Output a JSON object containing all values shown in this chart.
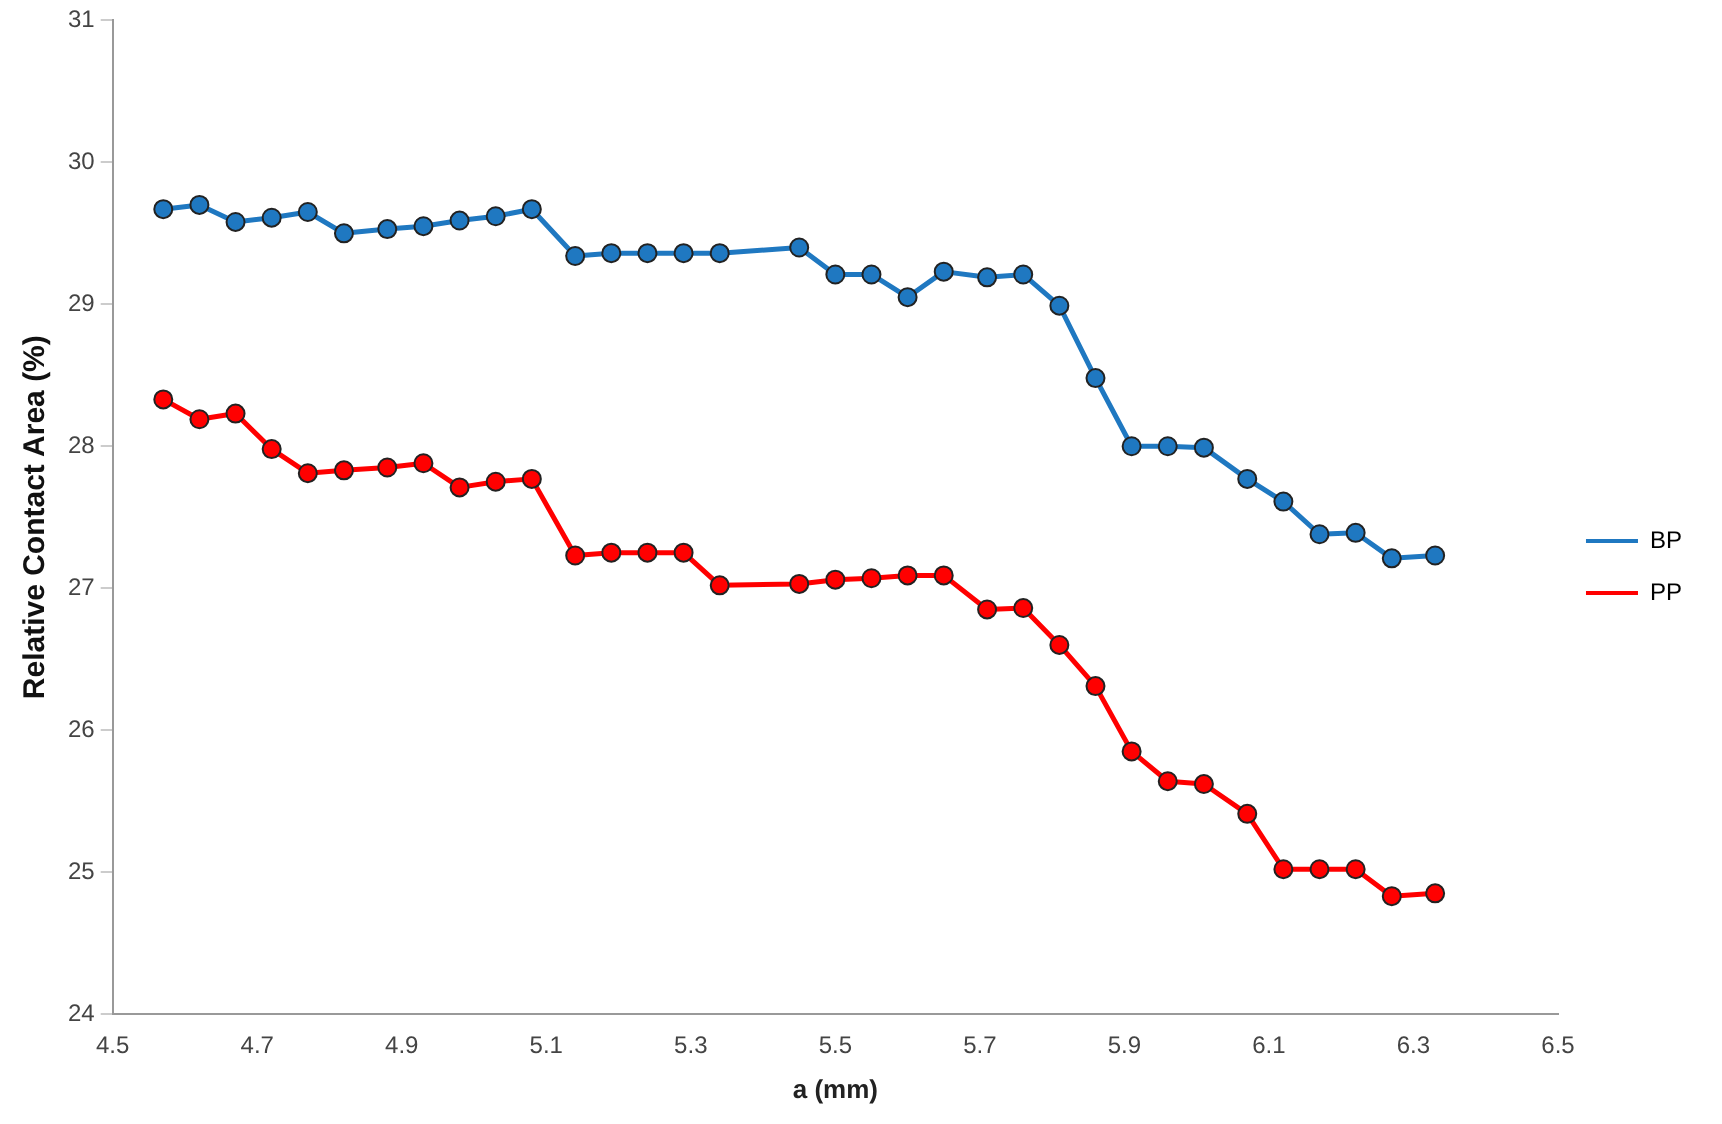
{
  "chart_data": {
    "type": "line",
    "xlabel": "a (mm)",
    "ylabel": "Relative Contact Area (%)",
    "x": [
      4.57,
      4.62,
      4.67,
      4.72,
      4.77,
      4.82,
      4.88,
      4.93,
      4.98,
      5.03,
      5.08,
      5.14,
      5.19,
      5.24,
      5.29,
      5.34,
      5.45,
      5.5,
      5.55,
      5.6,
      5.65,
      5.71,
      5.76,
      5.81,
      5.86,
      5.91,
      5.96,
      6.01,
      6.07,
      6.12,
      6.17,
      6.22,
      6.27,
      6.33
    ],
    "series": [
      {
        "name": "BP",
        "color": "#1f78c1",
        "values": [
          29.67,
          29.7,
          29.58,
          29.61,
          29.65,
          29.5,
          29.53,
          29.55,
          29.59,
          29.62,
          29.67,
          29.34,
          29.36,
          29.36,
          29.36,
          29.36,
          29.4,
          29.21,
          29.21,
          29.05,
          29.23,
          29.19,
          29.21,
          28.99,
          28.48,
          28.0,
          28.0,
          27.99,
          27.77,
          27.61,
          27.38,
          27.39,
          27.21,
          27.23
        ]
      },
      {
        "name": "PP",
        "color": "#ff0000",
        "values": [
          28.33,
          28.19,
          28.23,
          27.98,
          27.81,
          27.83,
          27.85,
          27.88,
          27.71,
          27.75,
          27.77,
          27.23,
          27.25,
          27.25,
          27.25,
          27.02,
          27.03,
          27.06,
          27.07,
          27.09,
          27.09,
          26.85,
          26.86,
          26.6,
          26.31,
          25.85,
          25.64,
          25.62,
          25.41,
          25.02,
          25.02,
          25.02,
          24.83,
          24.85
        ]
      }
    ],
    "xlim": [
      4.5,
      6.5
    ],
    "xticks": [
      4.5,
      4.7,
      4.9,
      5.1,
      5.3,
      5.5,
      5.7,
      5.9,
      6.1,
      6.3,
      6.5
    ],
    "ylim": [
      24,
      31
    ],
    "yticks": [
      24,
      25,
      26,
      27,
      28,
      29,
      30,
      31
    ],
    "grid": false,
    "legend": "right",
    "marker": "circle",
    "line_style": "solid"
  }
}
